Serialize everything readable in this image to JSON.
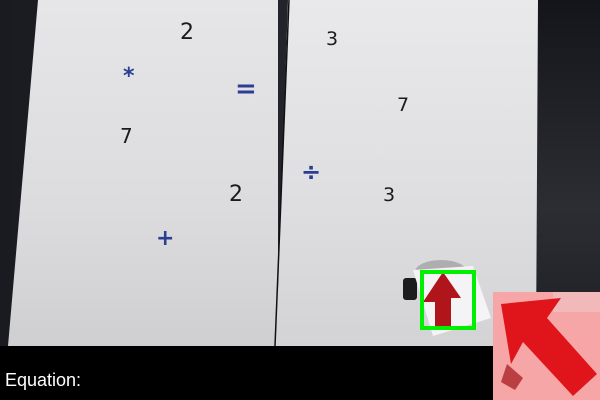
{
  "board": {
    "left": {
      "symbols": [
        "2",
        "*",
        "7",
        "2",
        "+"
      ]
    },
    "right": {
      "symbols": [
        "3",
        "=",
        "7",
        "÷",
        "3"
      ]
    }
  },
  "overlay": {
    "equation_label": "Equation:",
    "detection_color": "#00ee00",
    "zoom_preview_icon": "up-left-arrow-icon"
  },
  "colors": {
    "operator": "#2a3f92",
    "digit": "#1b1b1b",
    "arrow": "#e0151b"
  }
}
